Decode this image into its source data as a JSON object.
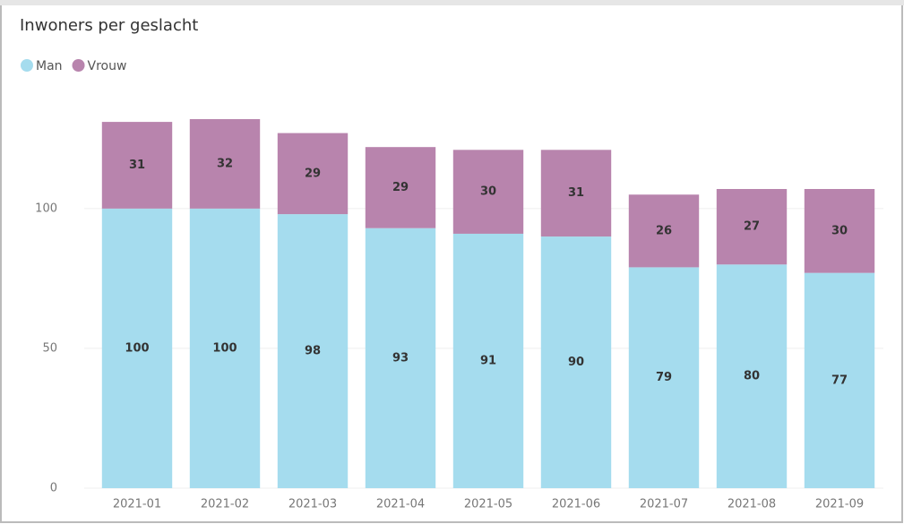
{
  "chart_data": {
    "type": "stacked_bar",
    "title": "Inwoners per geslacht",
    "categories": [
      "2021-01",
      "2021-02",
      "2021-03",
      "2021-04",
      "2021-05",
      "2021-06",
      "2021-07",
      "2021-08",
      "2021-09"
    ],
    "series": [
      {
        "name": "Man",
        "color": "#a5dcee",
        "values": [
          100,
          100,
          98,
          93,
          91,
          90,
          79,
          80,
          77
        ]
      },
      {
        "name": "Vrouw",
        "color": "#b884ad",
        "values": [
          31,
          32,
          29,
          29,
          30,
          31,
          26,
          27,
          30
        ]
      }
    ],
    "ylim": [
      0,
      140
    ],
    "yticks": [
      0,
      50,
      100
    ],
    "grid": true,
    "legend": "top-left"
  }
}
